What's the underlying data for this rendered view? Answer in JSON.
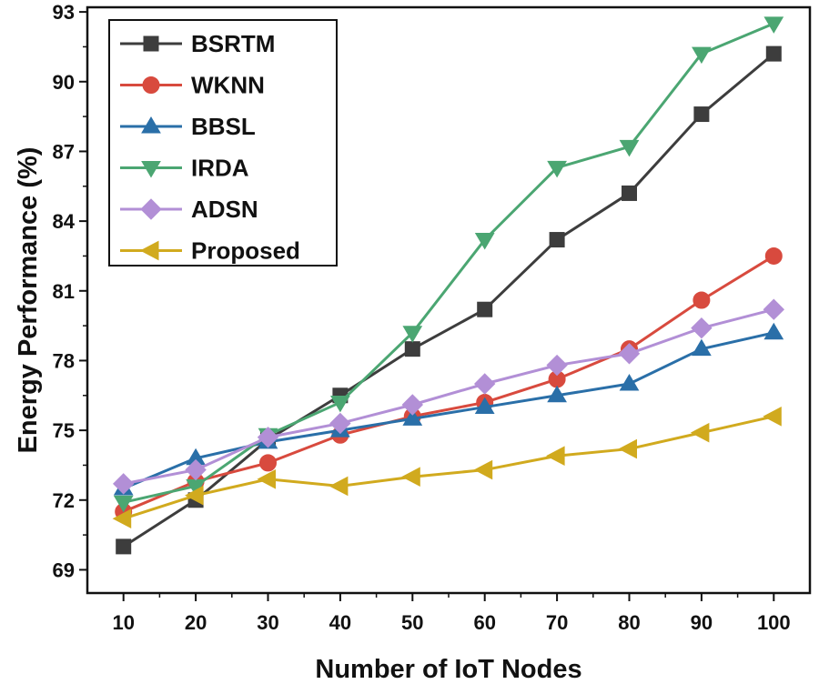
{
  "chart_data": {
    "type": "line",
    "title": "",
    "xlabel": "Number of IoT Nodes",
    "ylabel": "Energy Performance (%)",
    "x": [
      10,
      20,
      30,
      40,
      50,
      60,
      70,
      80,
      90,
      100
    ],
    "x_ticks": [
      "10",
      "20",
      "30",
      "40",
      "50",
      "60",
      "70",
      "80",
      "90",
      "100"
    ],
    "xlim": [
      5,
      105
    ],
    "y_ticks": [
      "69",
      "72",
      "75",
      "78",
      "81",
      "84",
      "87",
      "90",
      "93"
    ],
    "ylim": [
      68,
      93.2
    ],
    "grid": false,
    "legend_position": "top-left",
    "series": [
      {
        "name": "BSRTM",
        "color": "#3d3d3d",
        "marker": "square",
        "values": [
          70.0,
          72.0,
          74.6,
          76.5,
          78.5,
          80.2,
          83.2,
          85.2,
          88.6,
          91.2
        ]
      },
      {
        "name": "WKNN",
        "color": "#d84a3e",
        "marker": "circle",
        "values": [
          71.5,
          72.8,
          73.6,
          74.8,
          75.6,
          76.2,
          77.2,
          78.5,
          80.6,
          82.5
        ]
      },
      {
        "name": "BBSL",
        "color": "#2a6fa8",
        "marker": "triangle-up",
        "values": [
          72.5,
          73.8,
          74.5,
          75.0,
          75.5,
          76.0,
          76.5,
          77.0,
          78.5,
          79.2
        ]
      },
      {
        "name": "IRDA",
        "color": "#4ba672",
        "marker": "triangle-down",
        "values": [
          71.9,
          72.6,
          74.8,
          76.2,
          79.2,
          83.2,
          86.3,
          87.2,
          91.2,
          92.5
        ]
      },
      {
        "name": "ADSN",
        "color": "#b28fd6",
        "marker": "diamond",
        "values": [
          72.7,
          73.3,
          74.7,
          75.3,
          76.1,
          77.0,
          77.8,
          78.3,
          79.4,
          80.2
        ]
      },
      {
        "name": "Proposed",
        "color": "#d1aa1e",
        "marker": "triangle-left",
        "values": [
          71.2,
          72.2,
          72.9,
          72.6,
          73.0,
          73.3,
          73.9,
          74.2,
          74.9,
          75.6
        ]
      }
    ]
  }
}
